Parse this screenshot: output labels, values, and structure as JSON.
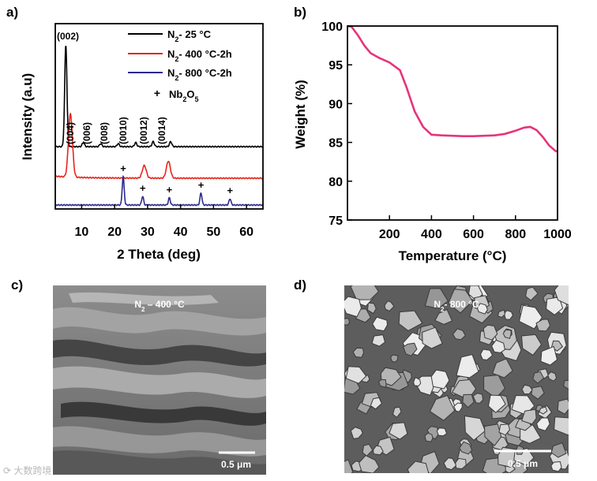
{
  "panel_labels": {
    "a": "a)",
    "b": "b)",
    "c": "c)",
    "d": "d)"
  },
  "colors": {
    "n2_25": "#000000",
    "n2_400": "#e8251c",
    "n2_800": "#2b2a8f",
    "tga": "#e6347a"
  },
  "chart_data": [
    {
      "type": "line",
      "panel": "a",
      "xlabel": "2 Theta (deg)",
      "ylabel": "Intensity (a.u)",
      "xlim": [
        2,
        65
      ],
      "xticks": [
        "10",
        "20",
        "30",
        "40",
        "50",
        "60"
      ],
      "legend": {
        "placement": "top-right",
        "entries": [
          {
            "sub_a": "N",
            "sub_b": "2",
            "sub_c": "- 25 °C",
            "color": "#000000"
          },
          {
            "sub_a": "N",
            "sub_b": "2",
            "sub_c": "- 400 °C-2h",
            "color": "#e8251c"
          },
          {
            "sub_a": "N",
            "sub_b": "2",
            "sub_c": "- 800 °C-2h",
            "color": "#2b2a8f"
          }
        ],
        "marker_entry": {
          "symbol": "+",
          "a": "Nb",
          "b": "2",
          "c": "O",
          "d": "5"
        }
      },
      "peak_labels": [
        "(002)",
        "(004)",
        "(006)",
        "(008)",
        "(0010)",
        "(0012)",
        "(0014)"
      ],
      "series": [
        {
          "name": "N2- 25 °C",
          "peaks": [
            {
              "x": 5.2,
              "h": 1.0
            },
            {
              "x": 10.5,
              "h": 0.04
            },
            {
              "x": 15.8,
              "h": 0.03
            },
            {
              "x": 21.1,
              "h": 0.03
            },
            {
              "x": 26.4,
              "h": 0.04
            },
            {
              "x": 31.7,
              "h": 0.05
            },
            {
              "x": 37.0,
              "h": 0.05
            }
          ]
        },
        {
          "name": "N2- 400 °C-2h",
          "peaks": [
            {
              "x": 6.6,
              "h": 1.0
            },
            {
              "x": 29.0,
              "h": 0.2
            },
            {
              "x": 36.3,
              "h": 0.27
            }
          ]
        },
        {
          "name": "N2- 800 °C-2h",
          "peaks": [
            {
              "x": 22.6,
              "h": 1.0
            },
            {
              "x": 28.5,
              "h": 0.3
            },
            {
              "x": 36.6,
              "h": 0.25
            },
            {
              "x": 46.2,
              "h": 0.42
            },
            {
              "x": 55.0,
              "h": 0.22
            }
          ]
        }
      ],
      "nb2o5_markers": [
        22.6,
        28.5,
        36.6,
        46.2,
        55.0
      ]
    },
    {
      "type": "line",
      "panel": "b",
      "xlabel": "Temperature (°C)",
      "ylabel": "Weight (%)",
      "xlim": [
        0,
        1000
      ],
      "ylim": [
        75,
        100
      ],
      "xticks": [
        "200",
        "400",
        "600",
        "800",
        "1000"
      ],
      "yticks": [
        "75",
        "80",
        "85",
        "90",
        "95",
        "100"
      ],
      "series": [
        {
          "x": [
            0,
            20,
            50,
            80,
            110,
            150,
            200,
            250,
            280,
            320,
            360,
            400,
            450,
            500,
            550,
            600,
            650,
            700,
            750,
            800,
            840,
            870,
            900,
            930,
            960,
            990,
            1000
          ],
          "y": [
            100,
            99.9,
            98.8,
            97.5,
            96.5,
            95.9,
            95.3,
            94.3,
            92.2,
            89.0,
            87.0,
            86.0,
            85.9,
            85.85,
            85.8,
            85.8,
            85.85,
            85.9,
            86.1,
            86.5,
            86.9,
            87.0,
            86.6,
            85.7,
            84.6,
            83.9,
            83.8
          ]
        }
      ]
    }
  ],
  "sem": {
    "c": {
      "pre": "N",
      "sub": "2",
      "post": " – 400 °C",
      "scale": "0.5 μm"
    },
    "d": {
      "pre": "N",
      "sub": "2",
      "post": "- 800 °C",
      "scale": "0.5 μm"
    }
  },
  "watermark": "大数跨境"
}
